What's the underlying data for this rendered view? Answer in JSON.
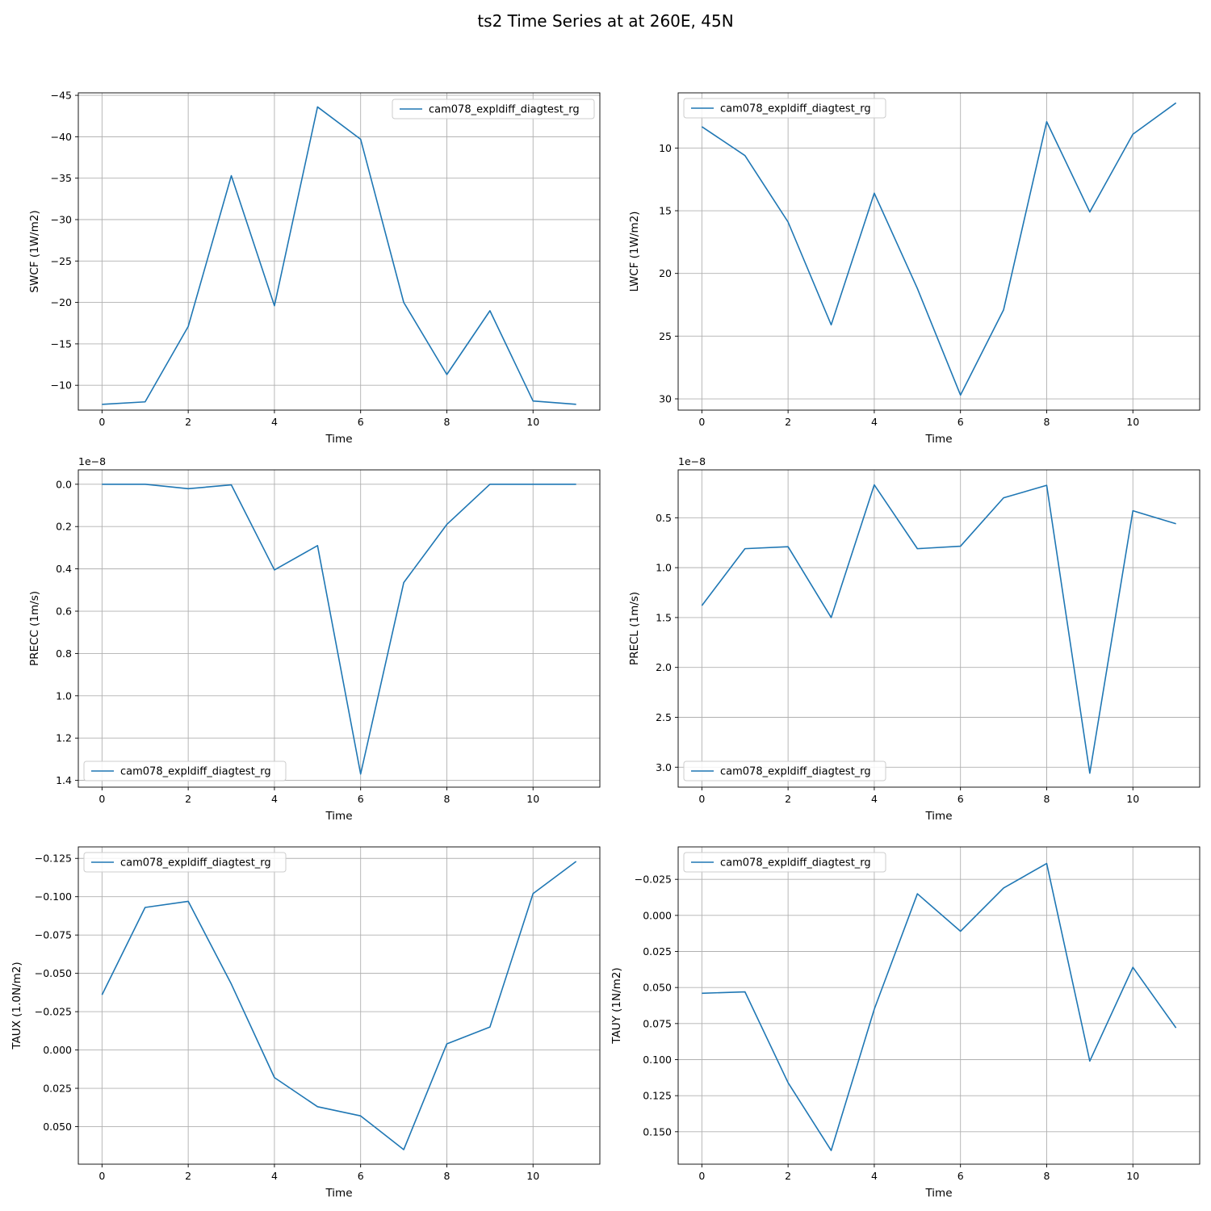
{
  "figure": {
    "title": "ts2 Time Series at at 260E, 45N",
    "line_color": "#1f77b4",
    "grid_color": "#b0b0b0"
  },
  "chart_data": [
    {
      "type": "line",
      "title": "",
      "xlabel": "Time",
      "ylabel": "SWCF (1W/m2)",
      "x": [
        0,
        1,
        2,
        3,
        4,
        5,
        6,
        7,
        8,
        9,
        10,
        11
      ],
      "xticks": [
        0,
        2,
        4,
        6,
        8,
        10
      ],
      "xlim": [
        -0.55,
        11.55
      ],
      "y_inverted": true,
      "ylim": [
        -7.0,
        -45.3
      ],
      "yticks": [
        -45,
        -40,
        -35,
        -30,
        -25,
        -20,
        -15,
        -10
      ],
      "ytick_labels": [
        "−45",
        "−40",
        "−35",
        "−30",
        "−25",
        "−20",
        "−15",
        "−10"
      ],
      "offset_label": "",
      "grid": true,
      "legend_loc": "upper right",
      "series": [
        {
          "name": "cam078_expldiff_diagtest_rg",
          "values": [
            -7.7,
            -8.0,
            -17.1,
            -35.3,
            -19.6,
            -43.6,
            -39.7,
            -20.0,
            -11.3,
            -19.0,
            -8.1,
            -7.7
          ]
        }
      ]
    },
    {
      "type": "line",
      "title": "",
      "xlabel": "Time",
      "ylabel": "LWCF (1W/m2)",
      "x": [
        0,
        1,
        2,
        3,
        4,
        5,
        6,
        7,
        8,
        9,
        10,
        11
      ],
      "xticks": [
        0,
        2,
        4,
        6,
        8,
        10
      ],
      "xlim": [
        -0.55,
        11.55
      ],
      "y_inverted": true,
      "ylim": [
        30.9,
        5.6
      ],
      "yticks": [
        10,
        15,
        20,
        25,
        30
      ],
      "ytick_labels": [
        "10",
        "15",
        "20",
        "25",
        "30"
      ],
      "offset_label": "",
      "grid": true,
      "legend_loc": "upper left",
      "series": [
        {
          "name": "cam078_expldiff_diagtest_rg",
          "values": [
            8.3,
            10.6,
            15.9,
            24.1,
            13.6,
            21.2,
            29.7,
            22.9,
            7.9,
            15.1,
            8.9,
            6.4
          ]
        }
      ]
    },
    {
      "type": "line",
      "title": "",
      "xlabel": "Time",
      "ylabel": "PRECC (1m/s)",
      "x": [
        0,
        1,
        2,
        3,
        4,
        5,
        6,
        7,
        8,
        9,
        10,
        11
      ],
      "xticks": [
        0,
        2,
        4,
        6,
        8,
        10
      ],
      "xlim": [
        -0.55,
        11.55
      ],
      "y_inverted": true,
      "ylim": [
        1.432,
        -0.068
      ],
      "yticks": [
        0.0,
        0.2,
        0.4,
        0.6,
        0.8,
        1.0,
        1.2,
        1.4
      ],
      "ytick_labels": [
        "0.0",
        "0.2",
        "0.4",
        "0.6",
        "0.8",
        "1.0",
        "1.2",
        "1.4"
      ],
      "offset_label": "1e−8",
      "grid": true,
      "legend_loc": "lower left",
      "series": [
        {
          "name": "cam078_expldiff_diagtest_rg",
          "values": [
            0.0,
            0.0,
            0.021,
            0.003,
            0.405,
            0.29,
            1.37,
            0.465,
            0.19,
            0.0,
            0.0,
            0.0
          ]
        }
      ]
    },
    {
      "type": "line",
      "title": "",
      "xlabel": "Time",
      "ylabel": "PRECL (1m/s)",
      "x": [
        0,
        1,
        2,
        3,
        4,
        5,
        6,
        7,
        8,
        9,
        10,
        11
      ],
      "xticks": [
        0,
        2,
        4,
        6,
        8,
        10
      ],
      "xlim": [
        -0.55,
        11.55
      ],
      "y_inverted": true,
      "ylim": [
        3.2,
        0.02
      ],
      "yticks": [
        0.5,
        1.0,
        1.5,
        2.0,
        2.5,
        3.0
      ],
      "ytick_labels": [
        "0.5",
        "1.0",
        "1.5",
        "2.0",
        "2.5",
        "3.0"
      ],
      "offset_label": "1e−8",
      "grid": true,
      "legend_loc": "lower left",
      "series": [
        {
          "name": "cam078_expldiff_diagtest_rg",
          "values": [
            1.38,
            0.81,
            0.79,
            1.5,
            0.17,
            0.81,
            0.785,
            0.3,
            0.175,
            3.06,
            0.43,
            0.56
          ]
        }
      ]
    },
    {
      "type": "line",
      "title": "",
      "xlabel": "Time",
      "ylabel": "TAUX (1.0N/m2)",
      "x": [
        0,
        1,
        2,
        3,
        4,
        5,
        6,
        7,
        8,
        9,
        10,
        11
      ],
      "xticks": [
        0,
        2,
        4,
        6,
        8,
        10
      ],
      "xlim": [
        -0.55,
        11.55
      ],
      "y_inverted": true,
      "ylim": [
        0.0745,
        -0.1325
      ],
      "yticks": [
        -0.125,
        -0.1,
        -0.075,
        -0.05,
        -0.025,
        0.0,
        0.025,
        0.05
      ],
      "ytick_labels": [
        "−0.125",
        "−0.100",
        "−0.075",
        "−0.050",
        "−0.025",
        "0.000",
        "0.025",
        "0.050"
      ],
      "offset_label": "",
      "grid": true,
      "legend_loc": "upper left",
      "series": [
        {
          "name": "cam078_expldiff_diagtest_rg",
          "values": [
            -0.036,
            -0.093,
            -0.097,
            -0.043,
            0.018,
            0.037,
            0.043,
            0.065,
            -0.004,
            -0.015,
            -0.102,
            -0.123
          ]
        }
      ]
    },
    {
      "type": "line",
      "title": "",
      "xlabel": "Time",
      "ylabel": "TAUY (1N/m2)",
      "x": [
        0,
        1,
        2,
        3,
        4,
        5,
        6,
        7,
        8,
        9,
        10,
        11
      ],
      "xticks": [
        0,
        2,
        4,
        6,
        8,
        10
      ],
      "xlim": [
        -0.55,
        11.55
      ],
      "y_inverted": true,
      "ylim": [
        0.1725,
        -0.0475
      ],
      "yticks": [
        -0.025,
        0.0,
        0.025,
        0.05,
        0.075,
        0.1,
        0.125,
        0.15
      ],
      "ytick_labels": [
        "−0.025",
        "0.000",
        "0.025",
        "0.050",
        "0.075",
        "0.100",
        "0.125",
        "0.150"
      ],
      "offset_label": "",
      "grid": true,
      "legend_loc": "upper left",
      "series": [
        {
          "name": "cam078_expldiff_diagtest_rg",
          "values": [
            0.054,
            0.053,
            0.116,
            0.163,
            0.065,
            -0.015,
            0.011,
            -0.019,
            -0.036,
            0.101,
            0.036,
            0.078
          ]
        }
      ]
    }
  ]
}
